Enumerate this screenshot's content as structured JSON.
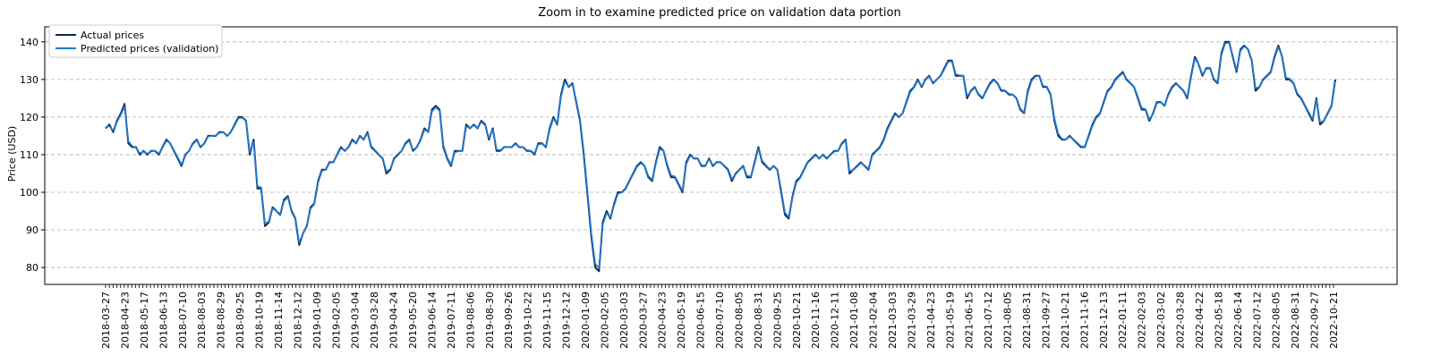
{
  "chart_data": {
    "type": "line",
    "title": "Zoom in to examine predicted price on validation data portion",
    "xlabel": "",
    "ylabel": "Price (USD)",
    "ylim": [
      75.5,
      144.0
    ],
    "yticks": [
      80,
      90,
      100,
      110,
      120,
      130,
      140
    ],
    "grid": "y dashed",
    "legend_position": "top-left",
    "x_tick_labels": [
      "2018-03-27",
      "2018-04-23",
      "2018-05-17",
      "2018-06-13",
      "2018-07-10",
      "2018-08-03",
      "2018-08-29",
      "2018-09-25",
      "2018-10-19",
      "2018-11-14",
      "2018-12-12",
      "2019-01-09",
      "2019-02-05",
      "2019-03-04",
      "2019-03-28",
      "2019-04-24",
      "2019-05-20",
      "2019-06-14",
      "2019-07-11",
      "2019-08-06",
      "2019-08-30",
      "2019-09-26",
      "2019-10-22",
      "2019-11-15",
      "2019-12-12",
      "2020-01-09",
      "2020-02-05",
      "2020-03-03",
      "2020-03-27",
      "2020-04-23",
      "2020-05-19",
      "2020-06-15",
      "2020-07-10",
      "2020-08-05",
      "2020-08-31",
      "2020-09-25",
      "2020-10-21",
      "2020-11-16",
      "2020-12-11",
      "2021-01-08",
      "2021-02-04",
      "2021-03-03",
      "2021-03-29",
      "2021-04-23",
      "2021-05-19",
      "2021-06-15",
      "2021-07-12",
      "2021-08-05",
      "2021-08-31",
      "2021-09-27",
      "2021-10-21",
      "2021-11-16",
      "2021-12-13",
      "2022-01-11",
      "2022-02-03",
      "2022-03-02",
      "2022-03-28",
      "2022-04-22",
      "2022-05-18",
      "2022-06-14",
      "2022-07-12",
      "2022-08-05",
      "2022-08-31",
      "2022-09-27",
      "2022-10-21"
    ],
    "series": [
      {
        "name": "Actual prices",
        "color": "#0b2a4a",
        "values": [
          117,
          118,
          116,
          119,
          121,
          123.5,
          113,
          112,
          112,
          110,
          111,
          110,
          111,
          111,
          110,
          112,
          114,
          113,
          111,
          109,
          107,
          110,
          111,
          113,
          114,
          112,
          113,
          115,
          115,
          115,
          116,
          116,
          115,
          116,
          118,
          120,
          120,
          119,
          110,
          114,
          101,
          101,
          91,
          92,
          96,
          95,
          94,
          98,
          99,
          95,
          93,
          86,
          89,
          91,
          96,
          97,
          103,
          106,
          106,
          108,
          108,
          110,
          112,
          111,
          112,
          114,
          113,
          115,
          114,
          116,
          112,
          111,
          110,
          109,
          105,
          106,
          109,
          110,
          111,
          113,
          114,
          111,
          112,
          114,
          117,
          116,
          122,
          123,
          122,
          112,
          109,
          107,
          111,
          111,
          111,
          118,
          117,
          118,
          117,
          119,
          118,
          114,
          117,
          111,
          111,
          112,
          112,
          112,
          113,
          112,
          112,
          111,
          111,
          110,
          113,
          113,
          112,
          117,
          120,
          118,
          126,
          130,
          128,
          129,
          124,
          119,
          110,
          99,
          88,
          80,
          79,
          92,
          95,
          93,
          97,
          100,
          100,
          101,
          103,
          105,
          107,
          108,
          107,
          104,
          103,
          108,
          112,
          111,
          107,
          104,
          104,
          102,
          100,
          108,
          110,
          109,
          109,
          107,
          107,
          109,
          107,
          108,
          108,
          107,
          106,
          103,
          105,
          106,
          107,
          104,
          104,
          108,
          112,
          108,
          107,
          106,
          107,
          106,
          100,
          94,
          93,
          99,
          103,
          104,
          106,
          108,
          109,
          110,
          109,
          110,
          109,
          110,
          111,
          111,
          113,
          114,
          105,
          106,
          107,
          108,
          107,
          106,
          110,
          111,
          112,
          114,
          117,
          119,
          121,
          120,
          121,
          124,
          127,
          128,
          130,
          128,
          130,
          131,
          129,
          130,
          131,
          133,
          135,
          135,
          131,
          131,
          131,
          125,
          127,
          128,
          126,
          125,
          127,
          129,
          130,
          129,
          127,
          127,
          126,
          126,
          125,
          122,
          121,
          127,
          130,
          131,
          131,
          128,
          128,
          126,
          119,
          115,
          114,
          114,
          115,
          114,
          113,
          112,
          112,
          115,
          118,
          120,
          121,
          124,
          127,
          128,
          130,
          131,
          132,
          130,
          129,
          128,
          125,
          122,
          122,
          119,
          121,
          124,
          124,
          123,
          126,
          128,
          129,
          128,
          127,
          125,
          131,
          136,
          134,
          131,
          133,
          133,
          130,
          129,
          137,
          140,
          140,
          136,
          132,
          138,
          139,
          138,
          135,
          127,
          128,
          130,
          131,
          132,
          136,
          139,
          136,
          130,
          130,
          129,
          126,
          125,
          123,
          121,
          119,
          125,
          118,
          119,
          121,
          123,
          130
        ]
      },
      {
        "name": "Predicted prices (validation)",
        "color": "#1f7bd8",
        "values": [
          117.3,
          117.6,
          116.4,
          118.7,
          120.6,
          122.8,
          113.6,
          112.3,
          111.8,
          110.4,
          110.8,
          110.3,
          110.8,
          111.1,
          110.3,
          111.8,
          113.7,
          113.1,
          111.2,
          109.3,
          107.4,
          109.7,
          111.1,
          112.8,
          113.8,
          112.2,
          112.9,
          114.8,
          115.0,
          115.1,
          115.8,
          115.9,
          115.1,
          115.9,
          117.8,
          119.7,
          119.8,
          118.9,
          110.6,
          113.4,
          101.6,
          101.3,
          91.6,
          92.3,
          95.7,
          95.0,
          94.2,
          97.6,
          98.7,
          95.3,
          93.2,
          86.6,
          89.0,
          91.2,
          95.6,
          96.8,
          102.6,
          105.7,
          106.0,
          107.8,
          108.1,
          109.8,
          111.7,
          111.1,
          111.9,
          113.7,
          113.1,
          114.8,
          114.1,
          115.7,
          112.3,
          111.2,
          110.1,
          109.1,
          105.5,
          106.2,
          108.8,
          109.8,
          111.0,
          112.8,
          113.7,
          111.3,
          112.0,
          113.8,
          116.6,
          116.1,
          121.5,
          122.6,
          121.7,
          112.5,
          109.3,
          107.3,
          110.6,
          110.9,
          111.1,
          117.5,
          117.1,
          117.8,
          117.1,
          118.7,
          117.8,
          114.4,
          116.7,
          111.4,
          111.2,
          111.9,
          112.0,
          112.0,
          112.8,
          112.1,
          112.0,
          111.2,
          111.1,
          110.3,
          112.7,
          112.9,
          112.2,
          116.6,
          119.6,
          118.2,
          125.4,
          129.4,
          128.1,
          128.7,
          124.4,
          119.5,
          110.8,
          99.9,
          89.0,
          81.0,
          79.8,
          91.4,
          94.5,
          93.3,
          96.6,
          99.6,
          100.0,
          100.8,
          102.8,
          104.8,
          106.7,
          107.7,
          107.1,
          104.4,
          103.3,
          107.6,
          111.5,
          111.0,
          107.4,
          104.5,
          104.2,
          102.3,
          100.4,
          107.5,
          109.7,
          109.1,
          109.0,
          107.2,
          107.1,
          108.8,
          107.2,
          107.9,
          107.9,
          107.1,
          106.2,
          103.5,
          104.8,
          105.9,
          106.8,
          104.4,
          104.2,
          107.6,
          111.6,
          108.4,
          107.2,
          106.2,
          106.9,
          106.0,
          100.6,
          94.6,
          93.4,
          98.6,
          102.6,
          103.8,
          105.8,
          107.8,
          108.8,
          109.8,
          109.1,
          109.9,
          109.2,
          109.9,
          110.8,
          111.0,
          112.8,
          113.8,
          105.6,
          105.9,
          106.8,
          107.8,
          107.1,
          106.2,
          109.7,
          110.8,
          111.8,
          113.7,
          116.6,
          118.7,
          120.7,
          120.1,
          120.9,
          123.7,
          126.6,
          127.8,
          129.7,
          128.2,
          129.8,
          130.8,
          129.2,
          130.0,
          130.9,
          132.7,
          134.7,
          134.8,
          131.4,
          131.1,
          131.0,
          125.6,
          126.8,
          127.8,
          126.2,
          125.2,
          126.8,
          128.7,
          129.8,
          129.1,
          127.2,
          127.1,
          126.2,
          126.0,
          125.1,
          122.3,
          121.2,
          126.5,
          129.6,
          130.8,
          130.9,
          128.3,
          128.1,
          126.2,
          119.7,
          115.6,
          114.2,
          114.0,
          114.8,
          114.1,
          113.2,
          112.2,
          112.1,
          114.7,
          117.6,
          119.7,
          120.8,
          123.7,
          126.7,
          127.8,
          129.7,
          130.8,
          131.7,
          130.2,
          129.1,
          128.1,
          125.3,
          122.4,
          122.1,
          119.4,
          120.8,
          123.7,
          123.9,
          123.1,
          125.7,
          127.7,
          128.8,
          128.1,
          127.1,
          125.3,
          130.6,
          135.5,
          134.1,
          131.3,
          132.8,
          132.9,
          130.2,
          129.2,
          136.5,
          139.6,
          139.8,
          136.3,
          132.4,
          137.6,
          138.8,
          138.1,
          135.2,
          127.7,
          128.0,
          129.8,
          130.8,
          131.8,
          135.6,
          138.6,
          136.1,
          130.5,
          130.2,
          129.1,
          126.3,
          125.2,
          123.2,
          121.3,
          119.4,
          124.6,
          118.6,
          119.0,
          120.8,
          122.8,
          129.4
        ]
      }
    ]
  }
}
